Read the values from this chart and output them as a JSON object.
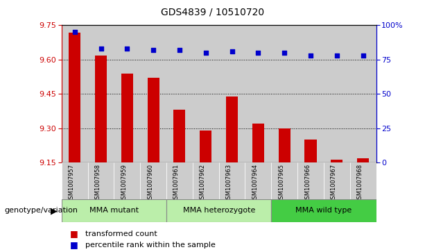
{
  "title": "GDS4839 / 10510720",
  "samples": [
    "GSM1007957",
    "GSM1007958",
    "GSM1007959",
    "GSM1007960",
    "GSM1007961",
    "GSM1007962",
    "GSM1007963",
    "GSM1007964",
    "GSM1007965",
    "GSM1007966",
    "GSM1007967",
    "GSM1007968"
  ],
  "transformed_count": [
    9.718,
    9.618,
    9.54,
    9.52,
    9.38,
    9.29,
    9.44,
    9.32,
    9.3,
    9.25,
    9.162,
    9.168
  ],
  "percentile_rank": [
    95,
    83,
    83,
    82,
    82,
    80,
    81,
    80,
    80,
    78,
    78,
    78
  ],
  "ylim_left": [
    9.15,
    9.75
  ],
  "ylim_right": [
    0,
    100
  ],
  "yticks_left": [
    9.15,
    9.3,
    9.45,
    9.6,
    9.75
  ],
  "yticks_right": [
    0,
    25,
    50,
    75,
    100
  ],
  "ytick_labels_right": [
    "0",
    "25",
    "50",
    "75",
    "100%"
  ],
  "grid_lines": [
    9.3,
    9.45,
    9.6
  ],
  "bar_color": "#cc0000",
  "dot_color": "#0000cc",
  "bar_baseline": 9.15,
  "group_defs": [
    {
      "label": "MMA mutant",
      "start": 0,
      "end": 4,
      "color": "#bbeeaa"
    },
    {
      "label": "MMA heterozygote",
      "start": 4,
      "end": 8,
      "color": "#bbeeaa"
    },
    {
      "label": "MMA wild type",
      "start": 8,
      "end": 12,
      "color": "#44cc44"
    }
  ],
  "legend_labels": [
    "transformed count",
    "percentile rank within the sample"
  ],
  "legend_colors": [
    "#cc0000",
    "#0000cc"
  ],
  "genotype_label": "genotype/variation",
  "background_gray": "#cccccc",
  "plot_bg": "white",
  "title_fontsize": 10,
  "tick_fontsize": 8,
  "label_fontsize": 8,
  "sample_fontsize": 6,
  "group_fontsize": 8
}
